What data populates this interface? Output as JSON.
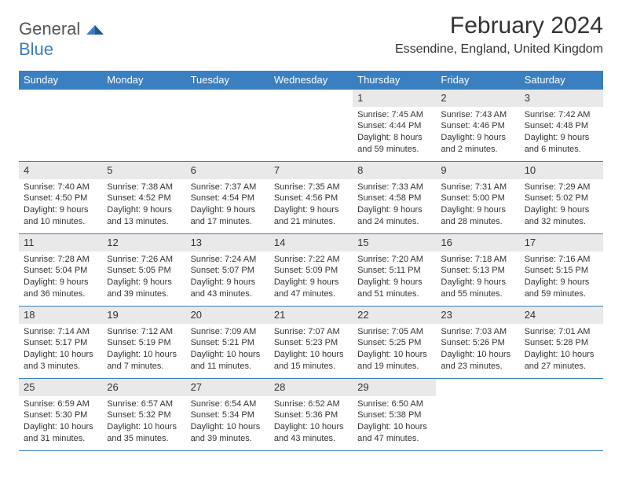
{
  "logo": {
    "line1": "General",
    "line2": "Blue"
  },
  "title": "February 2024",
  "location": "Essendine, England, United Kingdom",
  "colors": {
    "header_bg": "#3a7fbf",
    "header_fg": "#ffffff",
    "cell_border": "#3a7fbf",
    "daynum_bg": "#e9e9e9",
    "text": "#333333"
  },
  "weekdays": [
    "Sunday",
    "Monday",
    "Tuesday",
    "Wednesday",
    "Thursday",
    "Friday",
    "Saturday"
  ],
  "weeks": [
    [
      null,
      null,
      null,
      null,
      {
        "n": "1",
        "sunrise": "Sunrise: 7:45 AM",
        "sunset": "Sunset: 4:44 PM",
        "d1": "Daylight: 8 hours",
        "d2": "and 59 minutes."
      },
      {
        "n": "2",
        "sunrise": "Sunrise: 7:43 AM",
        "sunset": "Sunset: 4:46 PM",
        "d1": "Daylight: 9 hours",
        "d2": "and 2 minutes."
      },
      {
        "n": "3",
        "sunrise": "Sunrise: 7:42 AM",
        "sunset": "Sunset: 4:48 PM",
        "d1": "Daylight: 9 hours",
        "d2": "and 6 minutes."
      }
    ],
    [
      {
        "n": "4",
        "sunrise": "Sunrise: 7:40 AM",
        "sunset": "Sunset: 4:50 PM",
        "d1": "Daylight: 9 hours",
        "d2": "and 10 minutes."
      },
      {
        "n": "5",
        "sunrise": "Sunrise: 7:38 AM",
        "sunset": "Sunset: 4:52 PM",
        "d1": "Daylight: 9 hours",
        "d2": "and 13 minutes."
      },
      {
        "n": "6",
        "sunrise": "Sunrise: 7:37 AM",
        "sunset": "Sunset: 4:54 PM",
        "d1": "Daylight: 9 hours",
        "d2": "and 17 minutes."
      },
      {
        "n": "7",
        "sunrise": "Sunrise: 7:35 AM",
        "sunset": "Sunset: 4:56 PM",
        "d1": "Daylight: 9 hours",
        "d2": "and 21 minutes."
      },
      {
        "n": "8",
        "sunrise": "Sunrise: 7:33 AM",
        "sunset": "Sunset: 4:58 PM",
        "d1": "Daylight: 9 hours",
        "d2": "and 24 minutes."
      },
      {
        "n": "9",
        "sunrise": "Sunrise: 7:31 AM",
        "sunset": "Sunset: 5:00 PM",
        "d1": "Daylight: 9 hours",
        "d2": "and 28 minutes."
      },
      {
        "n": "10",
        "sunrise": "Sunrise: 7:29 AM",
        "sunset": "Sunset: 5:02 PM",
        "d1": "Daylight: 9 hours",
        "d2": "and 32 minutes."
      }
    ],
    [
      {
        "n": "11",
        "sunrise": "Sunrise: 7:28 AM",
        "sunset": "Sunset: 5:04 PM",
        "d1": "Daylight: 9 hours",
        "d2": "and 36 minutes."
      },
      {
        "n": "12",
        "sunrise": "Sunrise: 7:26 AM",
        "sunset": "Sunset: 5:05 PM",
        "d1": "Daylight: 9 hours",
        "d2": "and 39 minutes."
      },
      {
        "n": "13",
        "sunrise": "Sunrise: 7:24 AM",
        "sunset": "Sunset: 5:07 PM",
        "d1": "Daylight: 9 hours",
        "d2": "and 43 minutes."
      },
      {
        "n": "14",
        "sunrise": "Sunrise: 7:22 AM",
        "sunset": "Sunset: 5:09 PM",
        "d1": "Daylight: 9 hours",
        "d2": "and 47 minutes."
      },
      {
        "n": "15",
        "sunrise": "Sunrise: 7:20 AM",
        "sunset": "Sunset: 5:11 PM",
        "d1": "Daylight: 9 hours",
        "d2": "and 51 minutes."
      },
      {
        "n": "16",
        "sunrise": "Sunrise: 7:18 AM",
        "sunset": "Sunset: 5:13 PM",
        "d1": "Daylight: 9 hours",
        "d2": "and 55 minutes."
      },
      {
        "n": "17",
        "sunrise": "Sunrise: 7:16 AM",
        "sunset": "Sunset: 5:15 PM",
        "d1": "Daylight: 9 hours",
        "d2": "and 59 minutes."
      }
    ],
    [
      {
        "n": "18",
        "sunrise": "Sunrise: 7:14 AM",
        "sunset": "Sunset: 5:17 PM",
        "d1": "Daylight: 10 hours",
        "d2": "and 3 minutes."
      },
      {
        "n": "19",
        "sunrise": "Sunrise: 7:12 AM",
        "sunset": "Sunset: 5:19 PM",
        "d1": "Daylight: 10 hours",
        "d2": "and 7 minutes."
      },
      {
        "n": "20",
        "sunrise": "Sunrise: 7:09 AM",
        "sunset": "Sunset: 5:21 PM",
        "d1": "Daylight: 10 hours",
        "d2": "and 11 minutes."
      },
      {
        "n": "21",
        "sunrise": "Sunrise: 7:07 AM",
        "sunset": "Sunset: 5:23 PM",
        "d1": "Daylight: 10 hours",
        "d2": "and 15 minutes."
      },
      {
        "n": "22",
        "sunrise": "Sunrise: 7:05 AM",
        "sunset": "Sunset: 5:25 PM",
        "d1": "Daylight: 10 hours",
        "d2": "and 19 minutes."
      },
      {
        "n": "23",
        "sunrise": "Sunrise: 7:03 AM",
        "sunset": "Sunset: 5:26 PM",
        "d1": "Daylight: 10 hours",
        "d2": "and 23 minutes."
      },
      {
        "n": "24",
        "sunrise": "Sunrise: 7:01 AM",
        "sunset": "Sunset: 5:28 PM",
        "d1": "Daylight: 10 hours",
        "d2": "and 27 minutes."
      }
    ],
    [
      {
        "n": "25",
        "sunrise": "Sunrise: 6:59 AM",
        "sunset": "Sunset: 5:30 PM",
        "d1": "Daylight: 10 hours",
        "d2": "and 31 minutes."
      },
      {
        "n": "26",
        "sunrise": "Sunrise: 6:57 AM",
        "sunset": "Sunset: 5:32 PM",
        "d1": "Daylight: 10 hours",
        "d2": "and 35 minutes."
      },
      {
        "n": "27",
        "sunrise": "Sunrise: 6:54 AM",
        "sunset": "Sunset: 5:34 PM",
        "d1": "Daylight: 10 hours",
        "d2": "and 39 minutes."
      },
      {
        "n": "28",
        "sunrise": "Sunrise: 6:52 AM",
        "sunset": "Sunset: 5:36 PM",
        "d1": "Daylight: 10 hours",
        "d2": "and 43 minutes."
      },
      {
        "n": "29",
        "sunrise": "Sunrise: 6:50 AM",
        "sunset": "Sunset: 5:38 PM",
        "d1": "Daylight: 10 hours",
        "d2": "and 47 minutes."
      },
      null,
      null
    ]
  ]
}
